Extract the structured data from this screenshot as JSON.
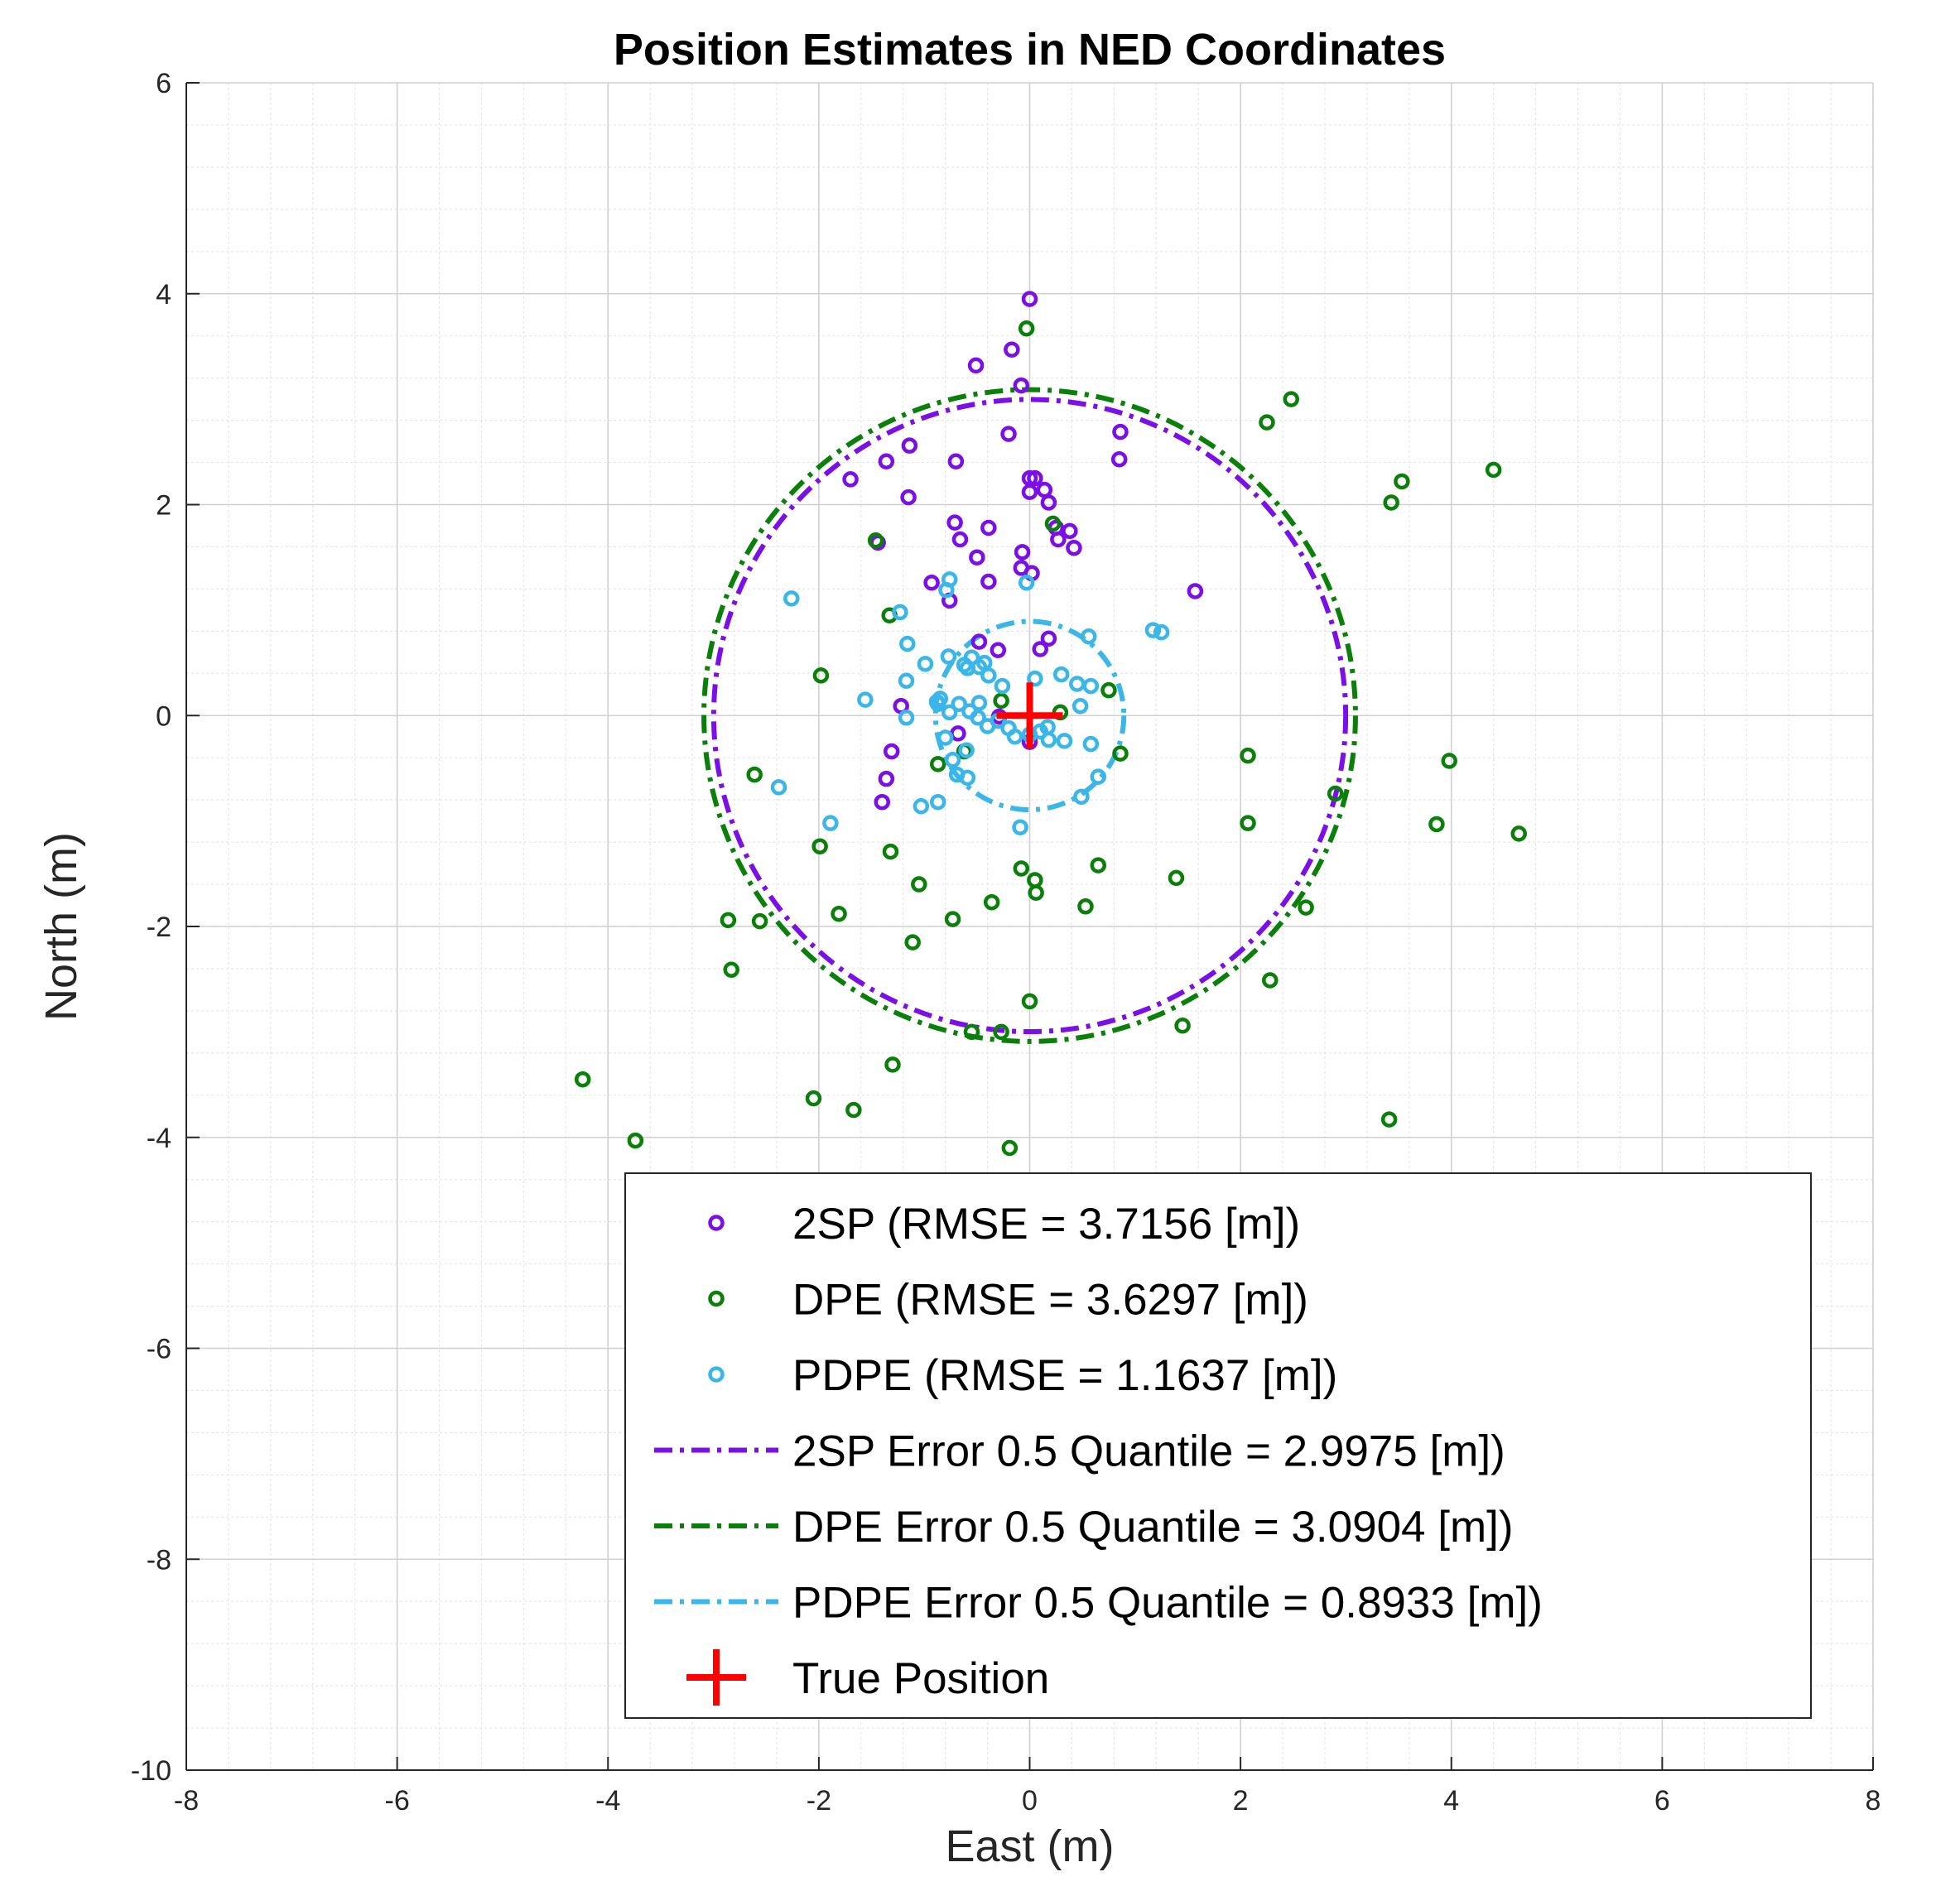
{
  "chart_data": {
    "type": "scatter",
    "title": "Position Estimates in NED Coordinates",
    "xlabel": "East (m)",
    "ylabel": "North (m)",
    "xlim": [
      -8,
      8
    ],
    "ylim": [
      -10,
      6
    ],
    "xticks": [
      -8,
      -6,
      -4,
      -2,
      0,
      2,
      4,
      6,
      8
    ],
    "yticks": [
      6,
      4,
      2,
      0,
      -2,
      -4,
      -6,
      -8,
      -10
    ],
    "grid": true,
    "minor_grid": true,
    "legend_position": "bottom-right",
    "series": [
      {
        "name": "2SP (RMSE = 3.7156 [m])",
        "kind": "scatter",
        "color": "#7a0fe6",
        "points": [
          [
            0.0,
            3.95
          ],
          [
            -0.17,
            3.47
          ],
          [
            -0.51,
            3.32
          ],
          [
            -0.08,
            3.13
          ],
          [
            -0.2,
            2.67
          ],
          [
            0.86,
            2.69
          ],
          [
            0.85,
            2.43
          ],
          [
            -1.14,
            2.56
          ],
          [
            -1.36,
            2.41
          ],
          [
            -0.7,
            2.41
          ],
          [
            -1.7,
            2.24
          ],
          [
            0.0,
            2.25
          ],
          [
            0.05,
            2.25
          ],
          [
            0.14,
            2.14
          ],
          [
            -1.15,
            2.07
          ],
          [
            0.0,
            2.12
          ],
          [
            0.18,
            2.02
          ],
          [
            -0.71,
            1.83
          ],
          [
            -0.39,
            1.78
          ],
          [
            0.25,
            1.78
          ],
          [
            0.38,
            1.75
          ],
          [
            -0.66,
            1.67
          ],
          [
            0.27,
            1.67
          ],
          [
            0.42,
            1.59
          ],
          [
            -1.44,
            1.64
          ],
          [
            -0.07,
            1.55
          ],
          [
            -0.5,
            1.5
          ],
          [
            -0.08,
            1.4
          ],
          [
            0.02,
            1.35
          ],
          [
            -0.93,
            1.26
          ],
          [
            -0.39,
            1.27
          ],
          [
            1.57,
            1.18
          ],
          [
            -0.76,
            1.09
          ],
          [
            -0.48,
            0.7
          ],
          [
            -0.3,
            0.62
          ],
          [
            0.18,
            0.73
          ],
          [
            0.1,
            0.63
          ],
          [
            -1.22,
            0.09
          ],
          [
            -0.29,
            -0.01
          ],
          [
            -0.68,
            -0.17
          ],
          [
            -1.31,
            -0.34
          ],
          [
            -1.36,
            -0.6
          ],
          [
            -1.4,
            -0.82
          ],
          [
            0.0,
            -0.25
          ]
        ]
      },
      {
        "name": "DPE (RMSE = 3.6297 [m])",
        "kind": "scatter",
        "color": "#0a7f0a",
        "points": [
          [
            -0.03,
            3.67
          ],
          [
            2.48,
            3.0
          ],
          [
            2.25,
            2.78
          ],
          [
            4.4,
            2.33
          ],
          [
            3.53,
            2.22
          ],
          [
            3.43,
            2.02
          ],
          [
            0.22,
            1.82
          ],
          [
            -1.46,
            1.66
          ],
          [
            -1.33,
            0.95
          ],
          [
            -1.98,
            0.38
          ],
          [
            -0.27,
            0.14
          ],
          [
            0.75,
            0.24
          ],
          [
            0.86,
            -0.36
          ],
          [
            -0.87,
            -0.46
          ],
          [
            -2.61,
            -0.56
          ],
          [
            -0.62,
            -0.34
          ],
          [
            2.07,
            -0.38
          ],
          [
            3.98,
            -0.43
          ],
          [
            2.9,
            -0.74
          ],
          [
            3.86,
            -1.03
          ],
          [
            2.07,
            -1.02
          ],
          [
            4.64,
            -1.12
          ],
          [
            -1.99,
            -1.24
          ],
          [
            -1.32,
            -1.29
          ],
          [
            -0.08,
            -1.45
          ],
          [
            0.05,
            -1.56
          ],
          [
            0.06,
            -1.68
          ],
          [
            0.65,
            -1.42
          ],
          [
            1.39,
            -1.54
          ],
          [
            -1.05,
            -1.6
          ],
          [
            -0.36,
            -1.77
          ],
          [
            0.53,
            -1.81
          ],
          [
            -1.81,
            -1.88
          ],
          [
            -0.73,
            -1.93
          ],
          [
            -2.56,
            -1.95
          ],
          [
            -2.86,
            -1.94
          ],
          [
            2.62,
            -1.82
          ],
          [
            -1.11,
            -2.15
          ],
          [
            -2.83,
            -2.41
          ],
          [
            2.28,
            -2.51
          ],
          [
            0.0,
            -2.71
          ],
          [
            -0.55,
            -3.0
          ],
          [
            -0.27,
            -3.0
          ],
          [
            1.45,
            -2.94
          ],
          [
            -1.3,
            -3.31
          ],
          [
            -2.05,
            -3.63
          ],
          [
            -1.67,
            -3.74
          ],
          [
            -4.24,
            -3.45
          ],
          [
            -3.74,
            -4.03
          ],
          [
            -0.19,
            -4.1
          ],
          [
            3.41,
            -3.83
          ],
          [
            0.29,
            0.03
          ]
        ]
      },
      {
        "name": "PDPE (RMSE = 1.1637 [m])",
        "kind": "scatter",
        "color": "#3ab6e8",
        "points": [
          [
            -0.03,
            1.26
          ],
          [
            -0.76,
            1.29
          ],
          [
            -0.79,
            1.19
          ],
          [
            -2.26,
            1.11
          ],
          [
            -1.23,
            0.98
          ],
          [
            1.17,
            0.81
          ],
          [
            1.25,
            0.79
          ],
          [
            0.56,
            0.75
          ],
          [
            -1.16,
            0.68
          ],
          [
            -0.77,
            0.56
          ],
          [
            -0.55,
            0.55
          ],
          [
            -0.62,
            0.48
          ],
          [
            -0.99,
            0.49
          ],
          [
            -0.43,
            0.5
          ],
          [
            -0.48,
            0.46
          ],
          [
            -0.59,
            0.45
          ],
          [
            0.3,
            0.39
          ],
          [
            0.05,
            0.35
          ],
          [
            -0.39,
            0.38
          ],
          [
            -1.17,
            0.33
          ],
          [
            -0.26,
            0.28
          ],
          [
            0.45,
            0.3
          ],
          [
            0.58,
            0.28
          ],
          [
            -1.56,
            0.15
          ],
          [
            -0.88,
            0.13
          ],
          [
            -0.85,
            0.16
          ],
          [
            -0.87,
            0.11
          ],
          [
            -0.67,
            0.11
          ],
          [
            -0.48,
            0.12
          ],
          [
            -0.57,
            0.04
          ],
          [
            0.48,
            0.09
          ],
          [
            -0.76,
            0.03
          ],
          [
            -0.49,
            -0.02
          ],
          [
            -1.17,
            -0.02
          ],
          [
            -0.4,
            -0.1
          ],
          [
            -0.2,
            -0.12
          ],
          [
            0.1,
            -0.15
          ],
          [
            -0.14,
            -0.2
          ],
          [
            0.0,
            -0.18
          ],
          [
            0.18,
            -0.23
          ],
          [
            0.33,
            -0.24
          ],
          [
            0.58,
            -0.27
          ],
          [
            -0.6,
            -0.33
          ],
          [
            -0.8,
            -0.21
          ],
          [
            -0.73,
            -0.42
          ],
          [
            -0.69,
            -0.56
          ],
          [
            -0.59,
            -0.59
          ],
          [
            0.65,
            -0.58
          ],
          [
            0.49,
            -0.77
          ],
          [
            -0.87,
            -0.82
          ],
          [
            -1.03,
            -0.86
          ],
          [
            -1.89,
            -1.02
          ],
          [
            -2.38,
            -0.68
          ],
          [
            -0.09,
            -1.06
          ],
          [
            0.17,
            -0.11
          ],
          [
            -0.3,
            -0.05
          ]
        ]
      },
      {
        "name": "2SP Error 0.5 Quantile = 2.9975 [m])",
        "kind": "circle",
        "color": "#7a0fe6",
        "center": [
          0,
          0
        ],
        "radius": 2.9975
      },
      {
        "name": "DPE Error 0.5 Quantile = 3.0904 [m])",
        "kind": "circle",
        "color": "#0a7f0a",
        "center": [
          0,
          0
        ],
        "radius": 3.0904
      },
      {
        "name": "PDPE Error 0.5 Quantile = 0.8933 [m])",
        "kind": "circle",
        "color": "#3ab6e8",
        "center": [
          0,
          0
        ],
        "radius": 0.8933
      },
      {
        "name": "True Position",
        "kind": "marker",
        "color": "#ff0000",
        "points": [
          [
            0,
            0
          ]
        ]
      }
    ]
  }
}
